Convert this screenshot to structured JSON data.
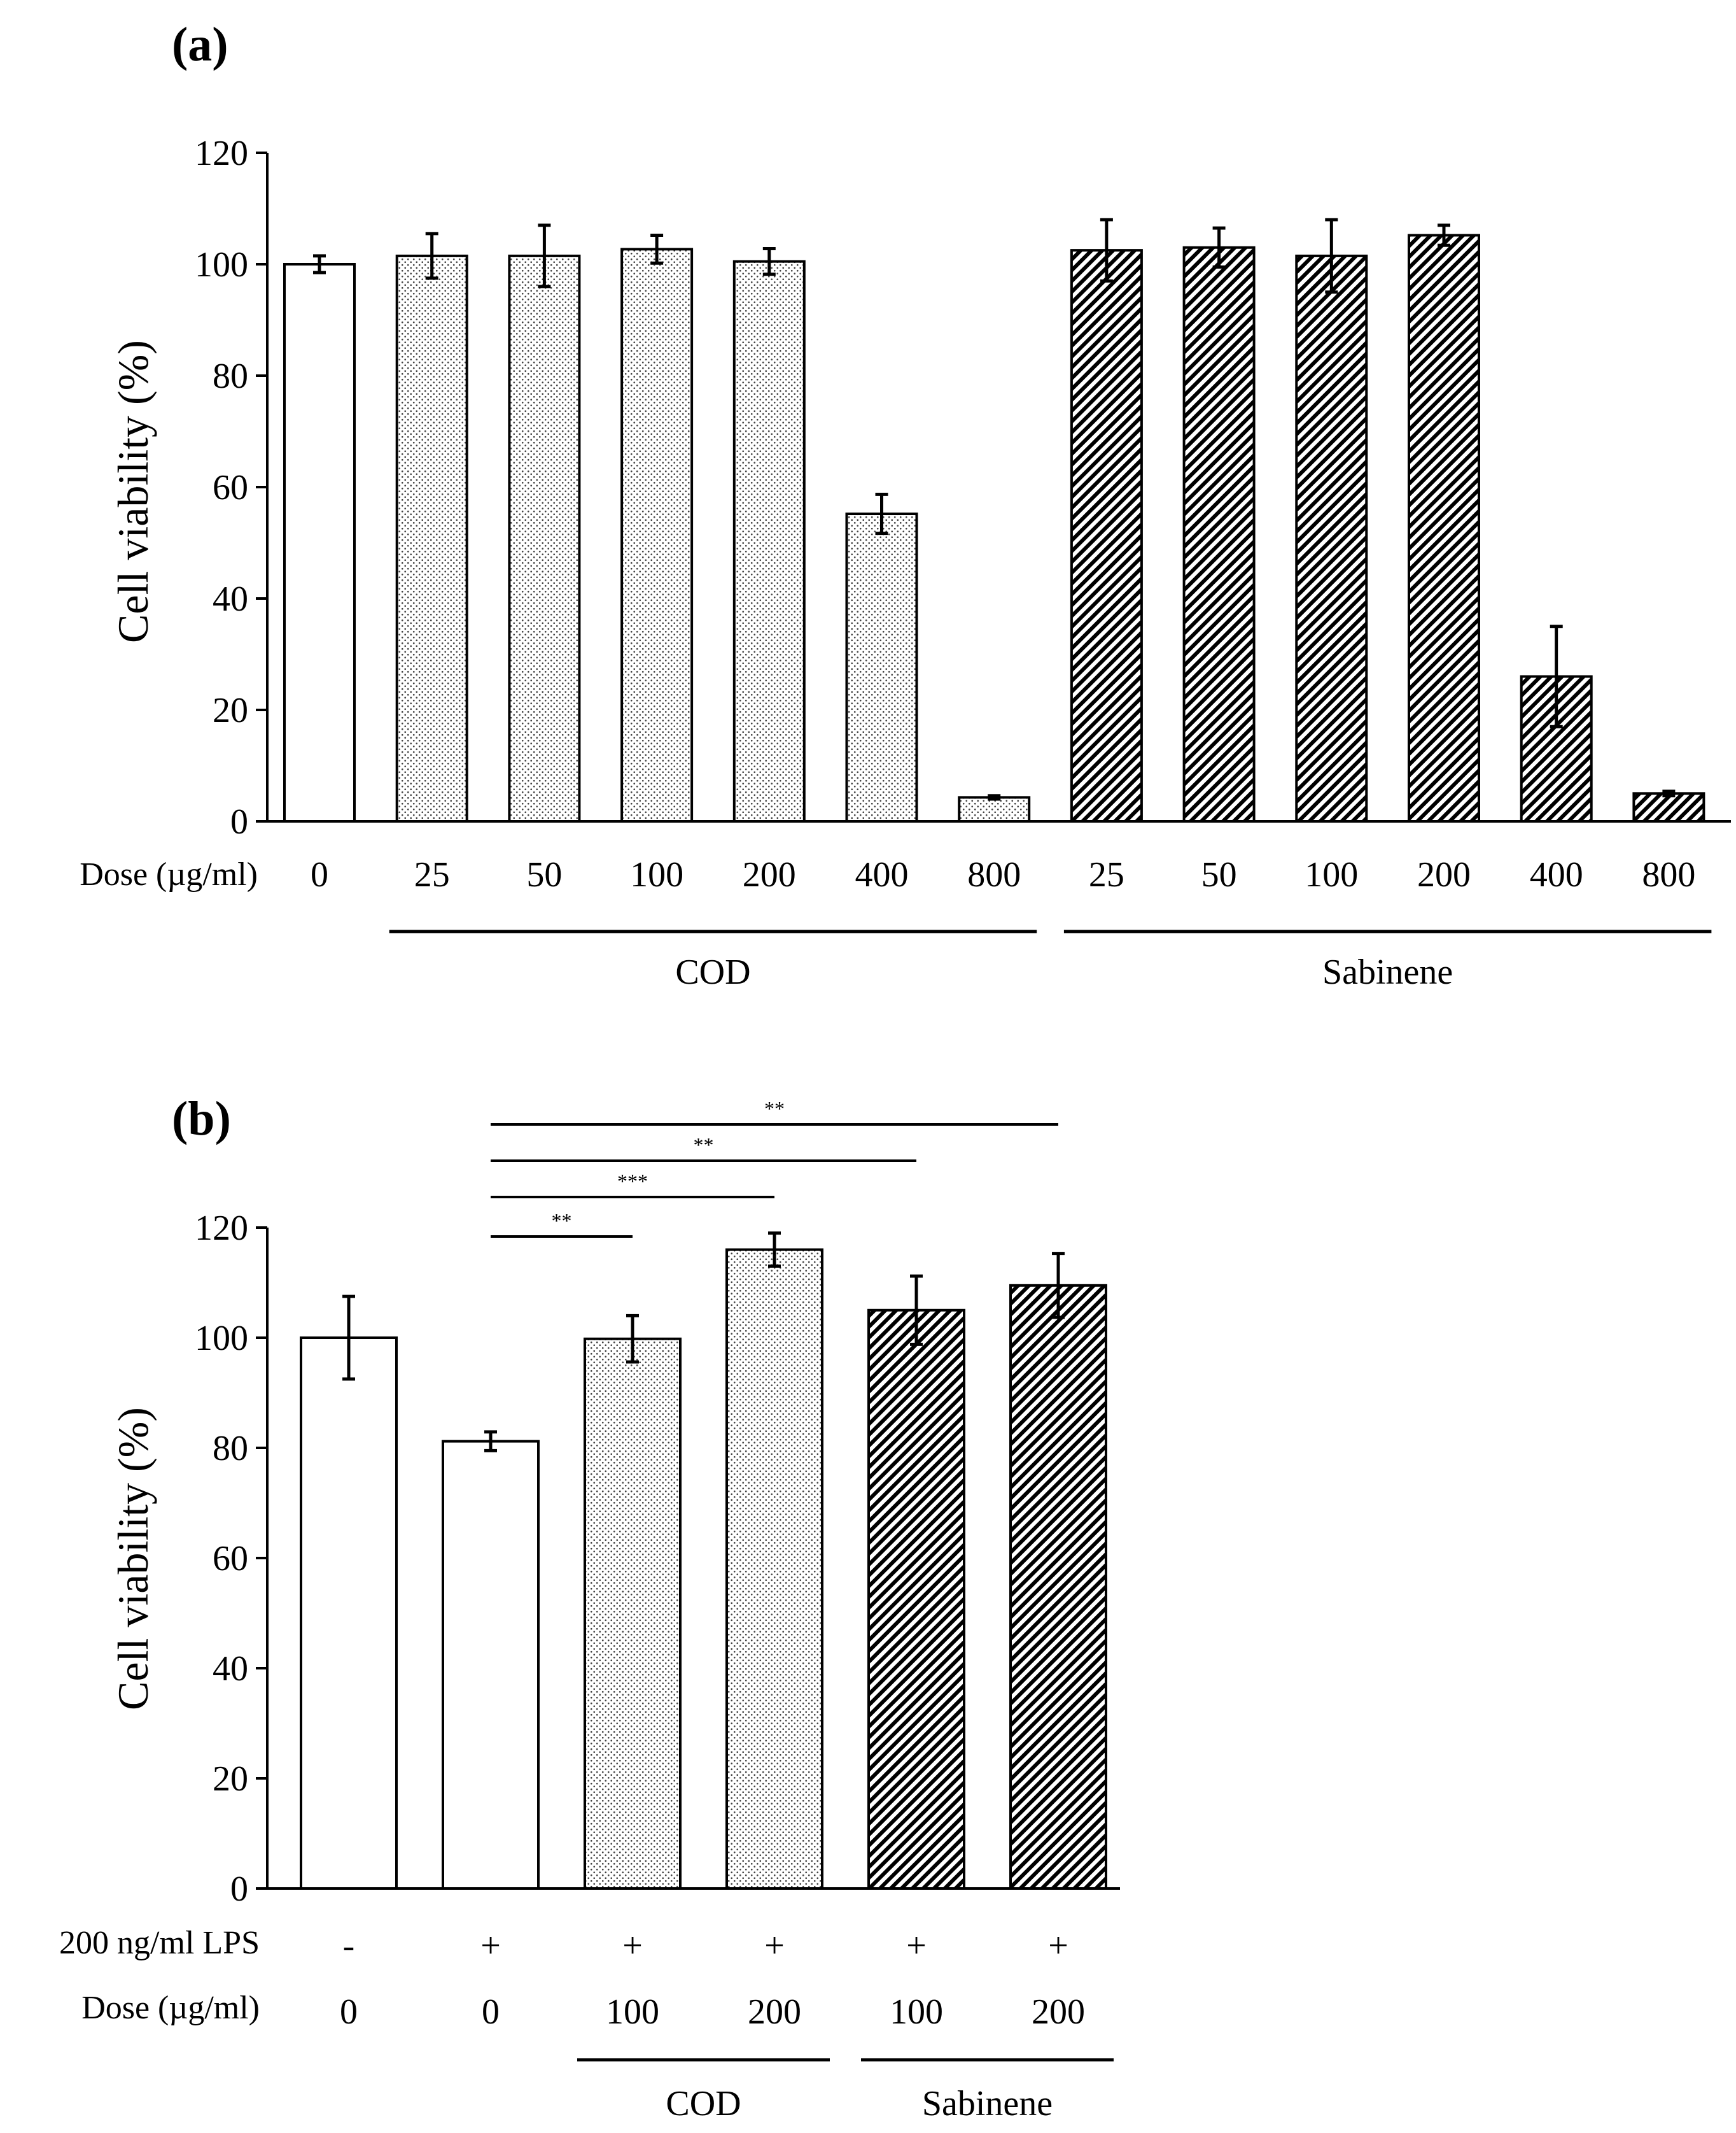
{
  "colors": {
    "axis": "#000000",
    "plain_fill": "#ffffff",
    "dot_fill": "#ffffff",
    "dot_color": "#444444",
    "hatch_bg": "#ffffff",
    "hatch_color": "#000000"
  },
  "chart_data": [
    {
      "id": "a",
      "type": "bar",
      "panel_label": "(a)",
      "ylabel": "Cell viability (%)",
      "ylim": [
        0,
        120
      ],
      "yticks": [
        0,
        20,
        40,
        60,
        80,
        100,
        120
      ],
      "row_label": "Dose (µg/ml)",
      "categories": [
        "0",
        "25",
        "50",
        "100",
        "200",
        "400",
        "800",
        "25",
        "50",
        "100",
        "200",
        "400",
        "800"
      ],
      "values": [
        100,
        101.5,
        101.5,
        102.7,
        100.5,
        55.2,
        4.3,
        102.5,
        103,
        101.5,
        105.2,
        26,
        5
      ],
      "errors": [
        1.5,
        4,
        5.5,
        2.5,
        2.3,
        3.5,
        0.3,
        5.5,
        3.5,
        6.5,
        1.8,
        9,
        0.4
      ],
      "patterns": [
        "plain",
        "dots",
        "dots",
        "dots",
        "dots",
        "dots",
        "dots",
        "hatch",
        "hatch",
        "hatch",
        "hatch",
        "hatch",
        "hatch"
      ],
      "groups": [
        {
          "label": "COD",
          "start": 1,
          "end": 6
        },
        {
          "label": "Sabinene",
          "start": 7,
          "end": 12
        }
      ],
      "significance": []
    },
    {
      "id": "b",
      "type": "bar",
      "panel_label": "(b)",
      "ylabel": "Cell viability (%)",
      "ylim": [
        0,
        120
      ],
      "yticks": [
        0,
        20,
        40,
        60,
        80,
        100,
        120
      ],
      "row_label": "Dose (µg/ml)",
      "extra_row_label": "200 ng/ml LPS",
      "extra_row": [
        "-",
        "+",
        "+",
        "+",
        "+",
        "+"
      ],
      "categories": [
        "0",
        "0",
        "100",
        "200",
        "100",
        "200"
      ],
      "values": [
        100,
        81.2,
        99.8,
        116,
        105,
        109.5
      ],
      "errors": [
        7.5,
        1.7,
        4.2,
        3,
        6.2,
        5.8
      ],
      "patterns": [
        "plain",
        "plain",
        "dots",
        "dots",
        "hatch",
        "hatch"
      ],
      "groups": [
        {
          "label": "COD",
          "start": 2,
          "end": 3
        },
        {
          "label": "Sabinene",
          "start": 4,
          "end": 5
        }
      ],
      "significance": [
        {
          "from": 1,
          "to": 2,
          "label": "**"
        },
        {
          "from": 1,
          "to": 3,
          "label": "***"
        },
        {
          "from": 1,
          "to": 4,
          "label": "**"
        },
        {
          "from": 1,
          "to": 5,
          "label": "**"
        }
      ]
    }
  ]
}
